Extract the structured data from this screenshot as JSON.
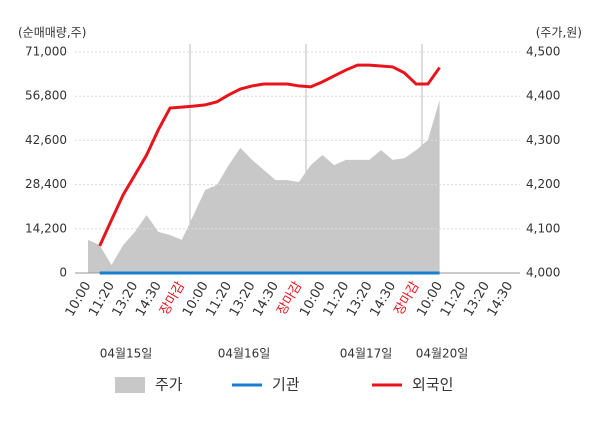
{
  "chart_data": {
    "type": "line",
    "y_label": "(순매매량,주)",
    "y2_label": "(주가,원)",
    "categories": [
      "10:00",
      null,
      "11:20",
      null,
      "13:20",
      null,
      "14:30",
      null,
      "장마감",
      null,
      "10:00",
      null,
      "11:20",
      null,
      "13:20",
      null,
      "14:30",
      null,
      "장마감",
      null,
      "10:00",
      null,
      "11:20",
      null,
      "13:20",
      null,
      "14:30",
      null,
      "장마감",
      null,
      "10:00",
      null,
      "11:20",
      null,
      "13:20",
      null,
      "14:30"
    ],
    "category_colors": [
      "#333333",
      null,
      "#333333",
      null,
      "#333333",
      null,
      "#333333",
      null,
      "#e8141c",
      null,
      "#333333",
      null,
      "#333333",
      null,
      "#333333",
      null,
      "#333333",
      null,
      "#e8141c",
      null,
      "#333333",
      null,
      "#333333",
      null,
      "#333333",
      null,
      "#333333",
      null,
      "#e8141c",
      null,
      "#333333",
      null,
      "#333333",
      null,
      "#333333",
      null,
      "#333333"
    ],
    "dates": [
      "04월15일",
      "04월16일",
      "04월17일",
      "04월20일"
    ],
    "series": [
      {
        "name": "주가",
        "kind": "area",
        "axis": "y2",
        "color": "#c8c8c8",
        "values": [
          4075,
          4063,
          4018,
          4063,
          4093,
          4131,
          4093,
          4086,
          4075,
          4131,
          4188,
          4199,
          4244,
          4283,
          4256,
          4233,
          4210,
          4210,
          4206,
          4244,
          4267,
          4244,
          4256,
          4256,
          4256,
          4278,
          4256,
          4260,
          4278,
          4301,
          4391,
          null,
          null,
          null,
          null,
          null,
          null
        ]
      },
      {
        "name": "기관",
        "kind": "line",
        "color": "#1a7fd0",
        "values": [
          null,
          0,
          0,
          0,
          0,
          0,
          0,
          0,
          0,
          0,
          0,
          0,
          0,
          0,
          0,
          0,
          0,
          0,
          0,
          0,
          0,
          0,
          0,
          0,
          0,
          0,
          0,
          0,
          0,
          0,
          0,
          null,
          null,
          null,
          null,
          null,
          null
        ]
      },
      {
        "name": "외국인",
        "kind": "line",
        "color": "#e8141c",
        "values": [
          null,
          8700,
          17000,
          25100,
          31500,
          37900,
          46000,
          53000,
          53300,
          53600,
          54000,
          55000,
          57200,
          59100,
          60100,
          60700,
          60700,
          60700,
          60100,
          59800,
          61400,
          63300,
          65200,
          66800,
          66800,
          66500,
          66200,
          64300,
          60700,
          60700,
          66000,
          null,
          null,
          null,
          null,
          null,
          null
        ]
      }
    ],
    "ylim": [
      0,
      71000
    ],
    "yticks": [
      0,
      {
        "value": 14200,
        "label": "14,200"
      },
      {
        "value": 28400,
        "label": "28,400"
      },
      {
        "value": 42600,
        "label": "42,600"
      },
      {
        "value": 56800,
        "label": "56,800"
      },
      {
        "value": 71000,
        "label": "71,000"
      }
    ],
    "y2lim": [
      4000,
      4500
    ],
    "y2ticks": [
      {
        "value": 4000,
        "label": "4,000"
      },
      {
        "value": 4100,
        "label": "4,100"
      },
      {
        "value": 4200,
        "label": "4,200"
      },
      {
        "value": 4300,
        "label": "4,300"
      },
      {
        "value": 4400,
        "label": "4,400"
      },
      {
        "value": 4500,
        "label": "4,500"
      }
    ],
    "grid": true
  }
}
